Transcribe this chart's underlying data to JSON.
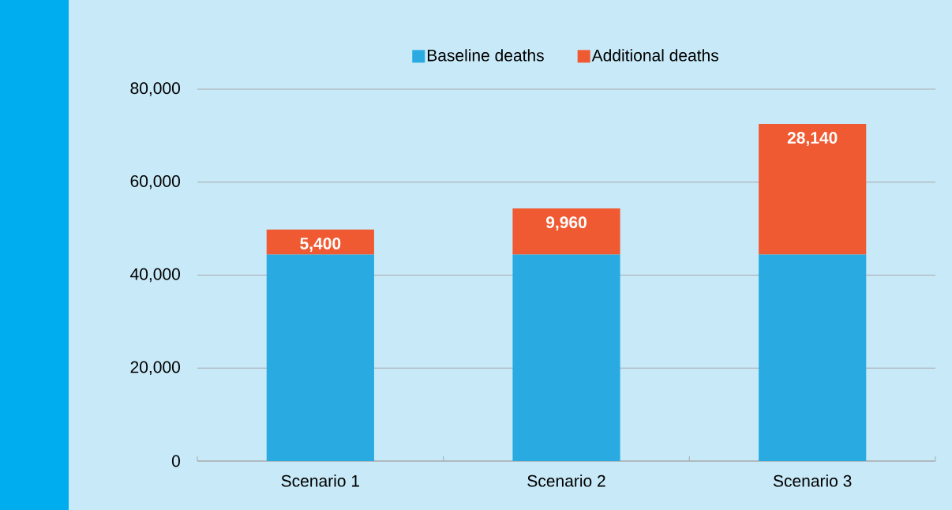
{
  "chart_data": {
    "type": "bar",
    "stacked": true,
    "categories": [
      "Scenario 1",
      "Scenario 2",
      "Scenario 3"
    ],
    "series": [
      {
        "name": "Baseline deaths",
        "color": "#29abe2",
        "values": [
          44400,
          44400,
          44400
        ]
      },
      {
        "name": "Additional deaths",
        "color": "#f05a32",
        "values": [
          5400,
          9960,
          28140
        ],
        "value_labels": [
          "5,400",
          "9,960",
          "28,140"
        ]
      }
    ],
    "ylim": [
      0,
      80000
    ],
    "yticks": [
      {
        "value": 0,
        "label": "0"
      },
      {
        "value": 20000,
        "label": "20,000"
      },
      {
        "value": 40000,
        "label": "40,000"
      },
      {
        "value": 60000,
        "label": "60,000"
      },
      {
        "value": 80000,
        "label": "80,000"
      }
    ],
    "grid": "y",
    "legend": "top"
  }
}
